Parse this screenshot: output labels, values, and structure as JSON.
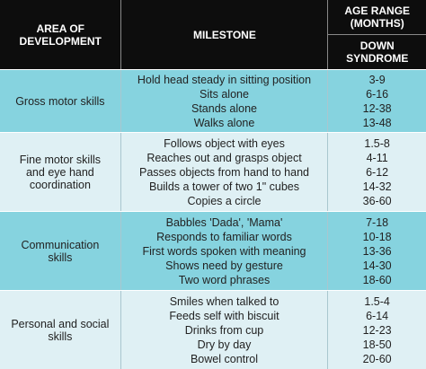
{
  "header": {
    "area": "AREA OF DEVELOPMENT",
    "milestone": "MILESTONE",
    "age_range": "AGE RANGE (MONTHS)",
    "down_syndrome": "DOWN SYNDROME"
  },
  "groups": [
    {
      "area": "Gross motor skills",
      "milestones": [
        {
          "milestone": "Hold head steady in sitting position",
          "age": "3-9"
        },
        {
          "milestone": "Sits alone",
          "age": "6-16"
        },
        {
          "milestone": "Stands alone",
          "age": "12-38"
        },
        {
          "milestone": "Walks alone",
          "age": "13-48"
        }
      ]
    },
    {
      "area": "Fine motor skills and eye hand coordination",
      "milestones": [
        {
          "milestone": "Follows object with eyes",
          "age": "1.5-8"
        },
        {
          "milestone": "Reaches out and grasps object",
          "age": "4-11"
        },
        {
          "milestone": "Passes objects from hand to hand",
          "age": "6-12"
        },
        {
          "milestone": "Builds a tower of two 1\" cubes",
          "age": "14-32"
        },
        {
          "milestone": "Copies a circle",
          "age": "36-60"
        }
      ]
    },
    {
      "area": "Communication skills",
      "milestones": [
        {
          "milestone": "Babbles 'Dada', 'Mama'",
          "age": "7-18"
        },
        {
          "milestone": "Responds to familiar words",
          "age": "10-18"
        },
        {
          "milestone": "First words spoken with meaning",
          "age": "13-36"
        },
        {
          "milestone": "Shows need by gesture",
          "age": "14-30"
        },
        {
          "milestone": "Two word phrases",
          "age": "18-60"
        }
      ]
    },
    {
      "area": "Personal and social skills",
      "milestones": [
        {
          "milestone": "Smiles when talked to",
          "age": "1.5-4"
        },
        {
          "milestone": "Feeds self with biscuit",
          "age": "6-14"
        },
        {
          "milestone": "Drinks from cup",
          "age": "12-23"
        },
        {
          "milestone": "Dry by day",
          "age": "18-50"
        },
        {
          "milestone": "Bowel control",
          "age": "20-60"
        }
      ]
    }
  ]
}
